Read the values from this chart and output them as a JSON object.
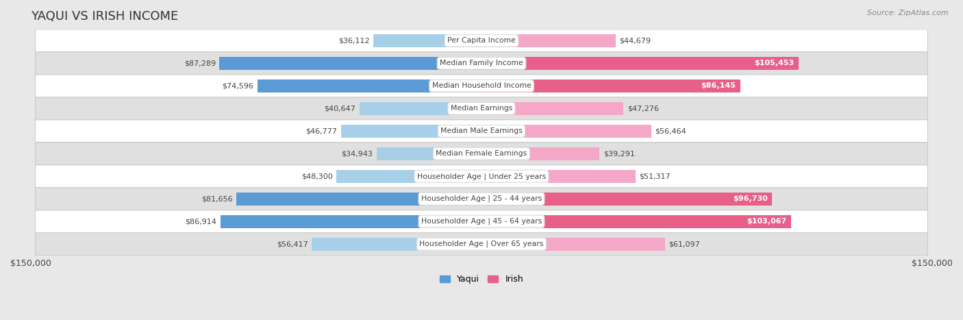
{
  "title": "YAQUI VS IRISH INCOME",
  "source": "Source: ZipAtlas.com",
  "categories": [
    "Per Capita Income",
    "Median Family Income",
    "Median Household Income",
    "Median Earnings",
    "Median Male Earnings",
    "Median Female Earnings",
    "Householder Age | Under 25 years",
    "Householder Age | 25 - 44 years",
    "Householder Age | 45 - 64 years",
    "Householder Age | Over 65 years"
  ],
  "yaqui_values": [
    36112,
    87289,
    74596,
    40647,
    46777,
    34943,
    48300,
    81656,
    86914,
    56417
  ],
  "irish_values": [
    44679,
    105453,
    86145,
    47276,
    56464,
    39291,
    51317,
    96730,
    103067,
    61097
  ],
  "yaqui_color_light": "#a8cfe8",
  "yaqui_color_dark": "#5b9bd5",
  "irish_color_light": "#f5a7c7",
  "irish_color_dark": "#e8608a",
  "threshold": 65000,
  "max_value": 150000,
  "bg_color": "#e8e8e8",
  "row_bg_light": "#ffffff",
  "row_bg_dark": "#e0e0e0",
  "label_color": "#444444",
  "title_color": "#333333",
  "legend_yaqui": "Yaqui",
  "legend_irish": "Irish",
  "axis_label": "$150,000"
}
